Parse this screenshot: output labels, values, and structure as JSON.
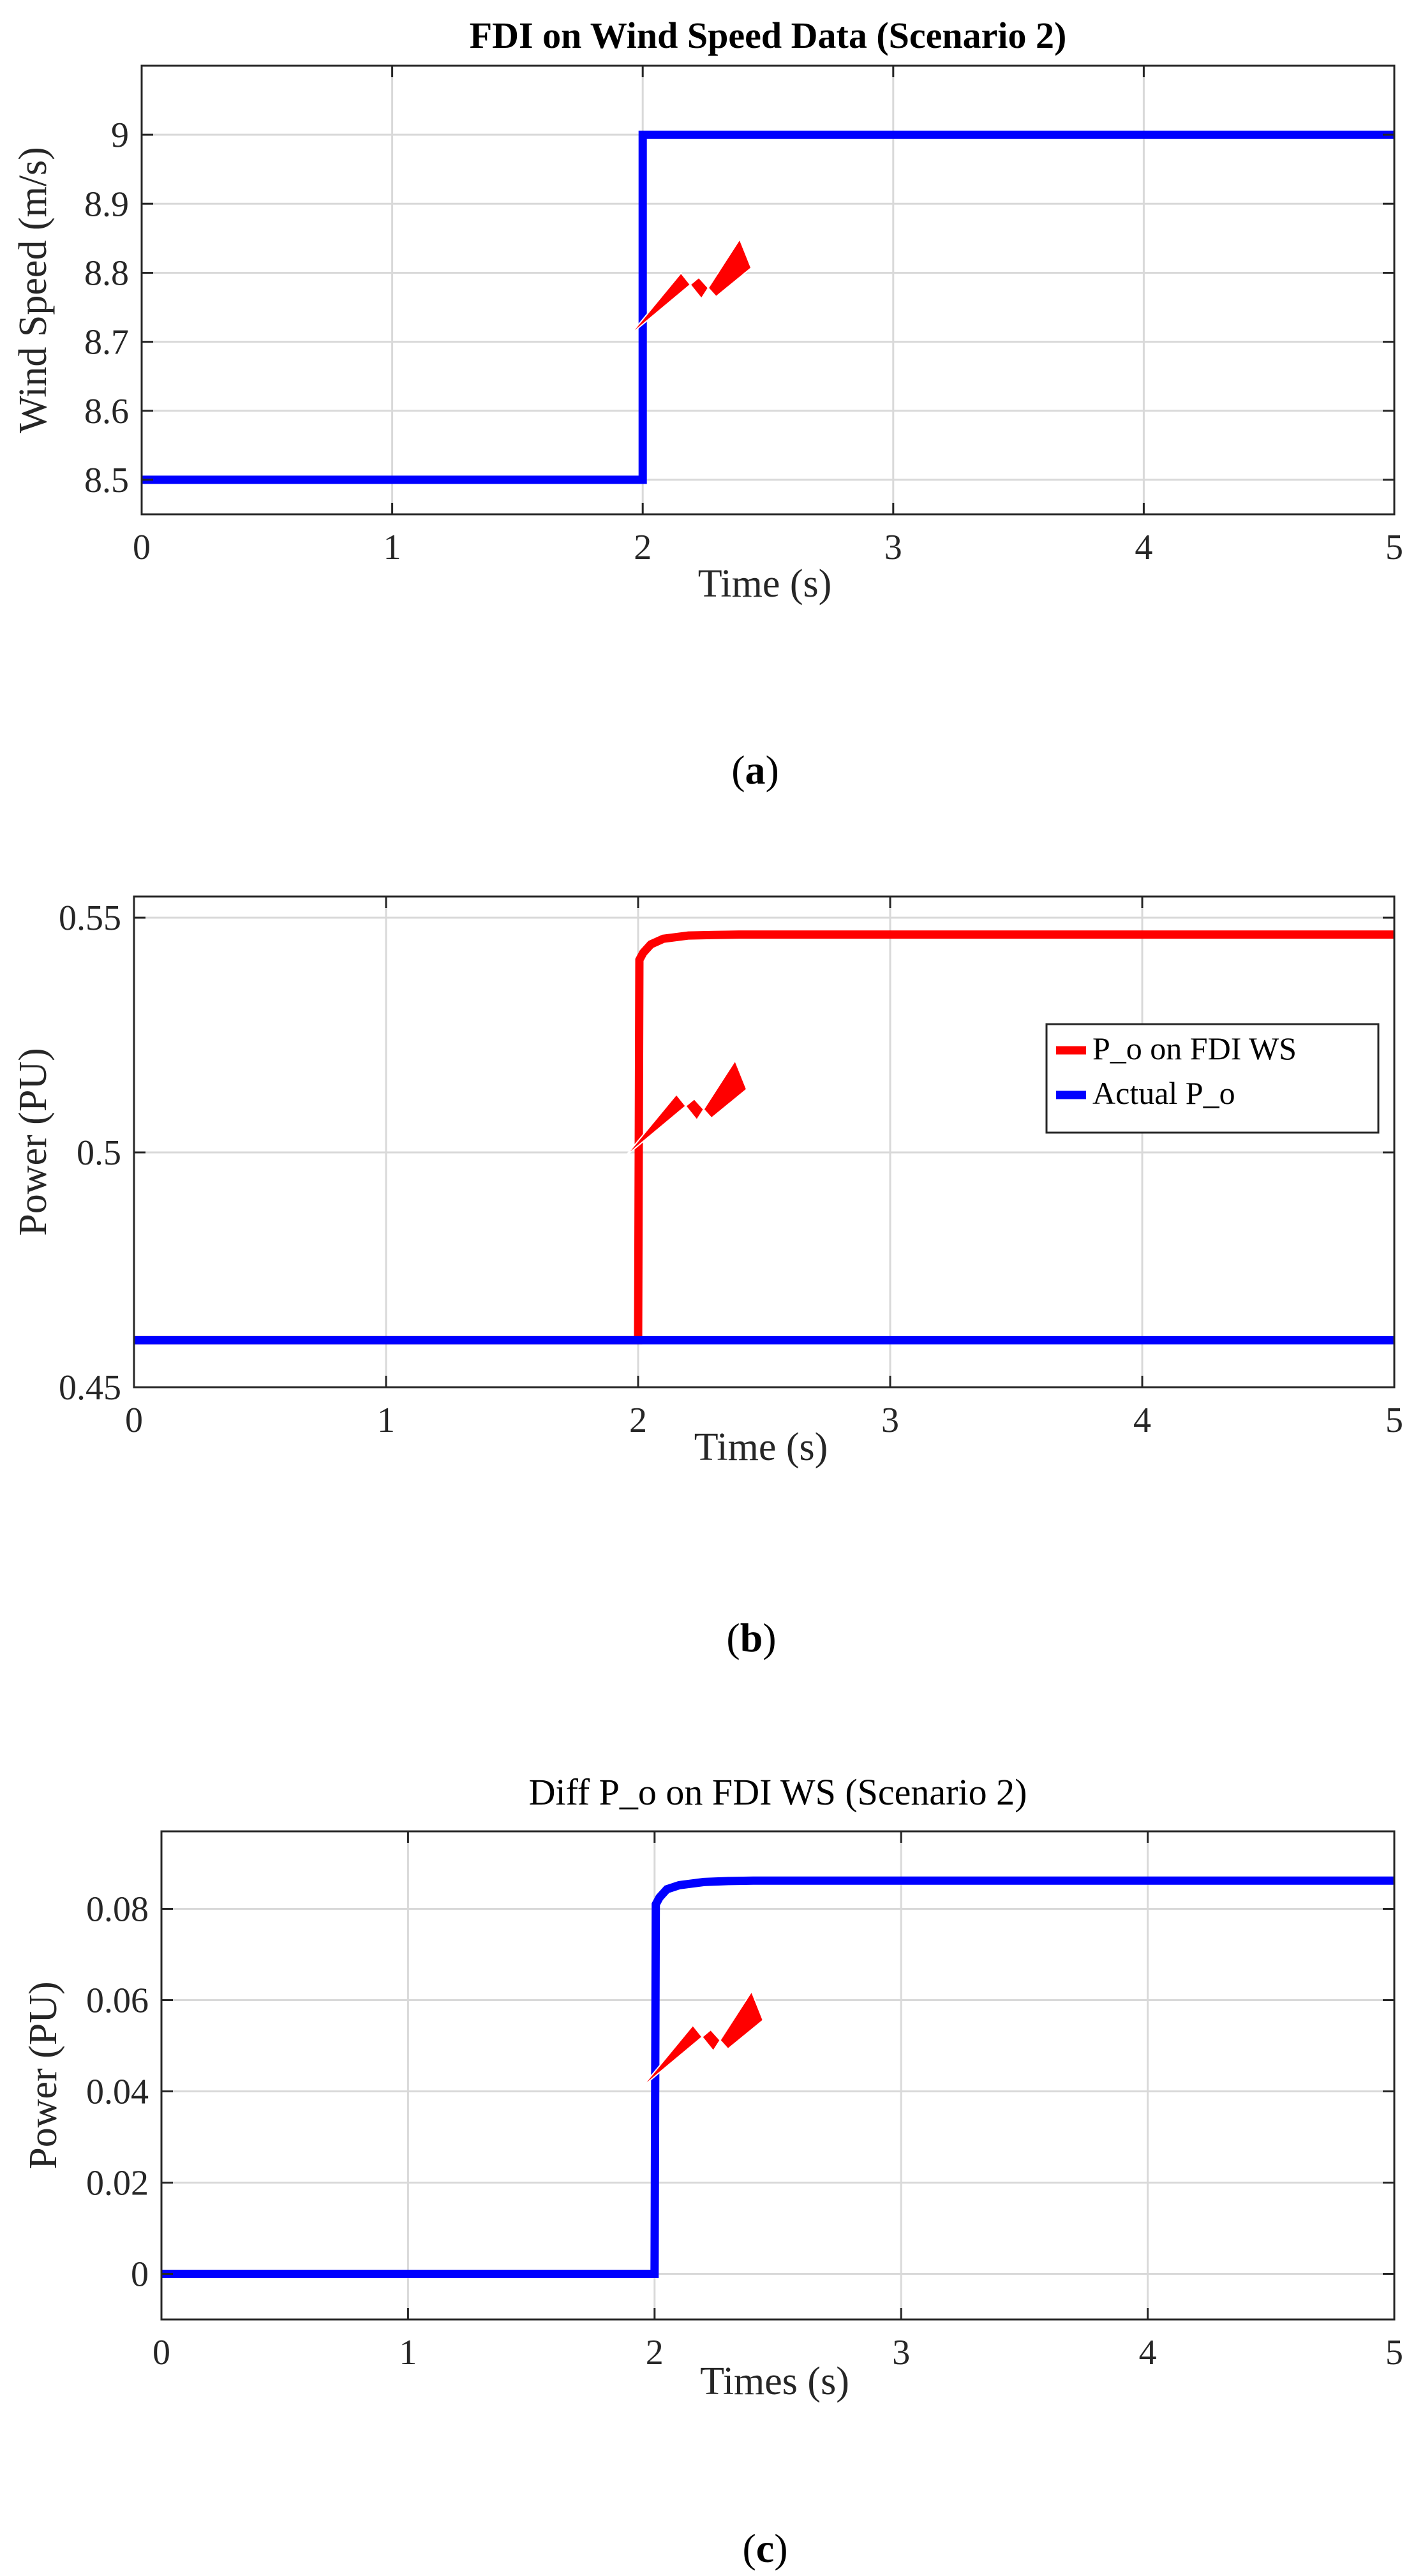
{
  "colors": {
    "blue": "#0000ff",
    "red": "#ff0000",
    "grid": "#d9d9d9",
    "axis": "#262626",
    "bolt": "#ff0000"
  },
  "bolt_icon": "lightning-bolt-icon",
  "chart_data": [
    {
      "type": "line",
      "panel_label": "a",
      "title": "FDI on Wind Speed Data (Scenario 2)",
      "title_bold": true,
      "xlabel": "Time (s)",
      "ylabel": "Wind Speed (m/s)",
      "xlim": [
        0,
        5
      ],
      "ylim": [
        8.45,
        9.1
      ],
      "xticks": [
        0,
        1,
        2,
        3,
        4,
        5
      ],
      "xtick_labels": [
        "0",
        "1",
        "2",
        "3",
        "4",
        "5"
      ],
      "yticks": [
        8.5,
        8.6,
        8.7,
        8.8,
        8.9,
        9
      ],
      "ytick_labels": [
        "8.5",
        "8.6",
        "8.7",
        "8.8",
        "8.9",
        "9"
      ],
      "grid": true,
      "legend": null,
      "series": [
        {
          "name": "Wind Speed",
          "color": "#0000ff",
          "x": [
            0,
            2,
            2,
            5
          ],
          "y": [
            8.5,
            8.5,
            9,
            9
          ]
        }
      ],
      "annotation": {
        "type": "lightning-bolt",
        "x": 2.0,
        "y": 8.77
      }
    },
    {
      "type": "line",
      "panel_label": "b",
      "title": "",
      "title_bold": false,
      "xlabel": "Time (s)",
      "ylabel": "Power (PU)",
      "xlim": [
        0,
        5
      ],
      "ylim": [
        0.45,
        0.5545
      ],
      "xticks": [
        0,
        1,
        2,
        3,
        4,
        5
      ],
      "xtick_labels": [
        "0",
        "1",
        "2",
        "3",
        "4",
        "5"
      ],
      "yticks": [
        0.45,
        0.5,
        0.55
      ],
      "ytick_labels": [
        "0.45",
        "0.5",
        "0.55"
      ],
      "grid": true,
      "legend": {
        "position": "right-middle",
        "entries": [
          "P_o on FDI WS",
          "Actual P_o"
        ]
      },
      "series": [
        {
          "name": "P_o on FDI WS",
          "color": "#ff0000",
          "x": [
            0,
            2,
            2.005,
            2.02,
            2.05,
            2.1,
            2.2,
            2.3,
            2.4,
            2.5,
            5
          ],
          "y": [
            0.46,
            0.46,
            0.541,
            0.5425,
            0.5443,
            0.5455,
            0.5462,
            0.5463,
            0.5464,
            0.5464,
            0.5464
          ]
        },
        {
          "name": "Actual P_o",
          "color": "#0000ff",
          "x": [
            0,
            5
          ],
          "y": [
            0.46,
            0.46
          ]
        }
      ],
      "annotation": {
        "type": "lightning-bolt",
        "x": 2.0,
        "y": 0.508
      }
    },
    {
      "type": "line",
      "panel_label": "c",
      "title": "Diff P_o on FDI WS (Scenario 2)",
      "title_bold": false,
      "xlabel": "Times (s)",
      "ylabel": "Power (PU)",
      "xlim": [
        0,
        5
      ],
      "ylim": [
        -0.01,
        0.097
      ],
      "xticks": [
        0,
        1,
        2,
        3,
        4,
        5
      ],
      "xtick_labels": [
        "0",
        "1",
        "2",
        "3",
        "4",
        "5"
      ],
      "yticks": [
        0,
        0.02,
        0.04,
        0.06,
        0.08
      ],
      "ytick_labels": [
        "0",
        "0.02",
        "0.04",
        "0.06",
        "0.08"
      ],
      "grid": true,
      "legend": null,
      "series": [
        {
          "name": "Diff P_o",
          "color": "#0000ff",
          "x": [
            0,
            2,
            2.005,
            2.02,
            2.05,
            2.1,
            2.2,
            2.3,
            2.4,
            2.5,
            5
          ],
          "y": [
            0,
            0,
            0.081,
            0.0825,
            0.0843,
            0.0852,
            0.0859,
            0.0861,
            0.0862,
            0.0862,
            0.0862
          ]
        }
      ],
      "annotation": {
        "type": "lightning-bolt",
        "x": 2.0,
        "y": 0.05
      }
    }
  ]
}
